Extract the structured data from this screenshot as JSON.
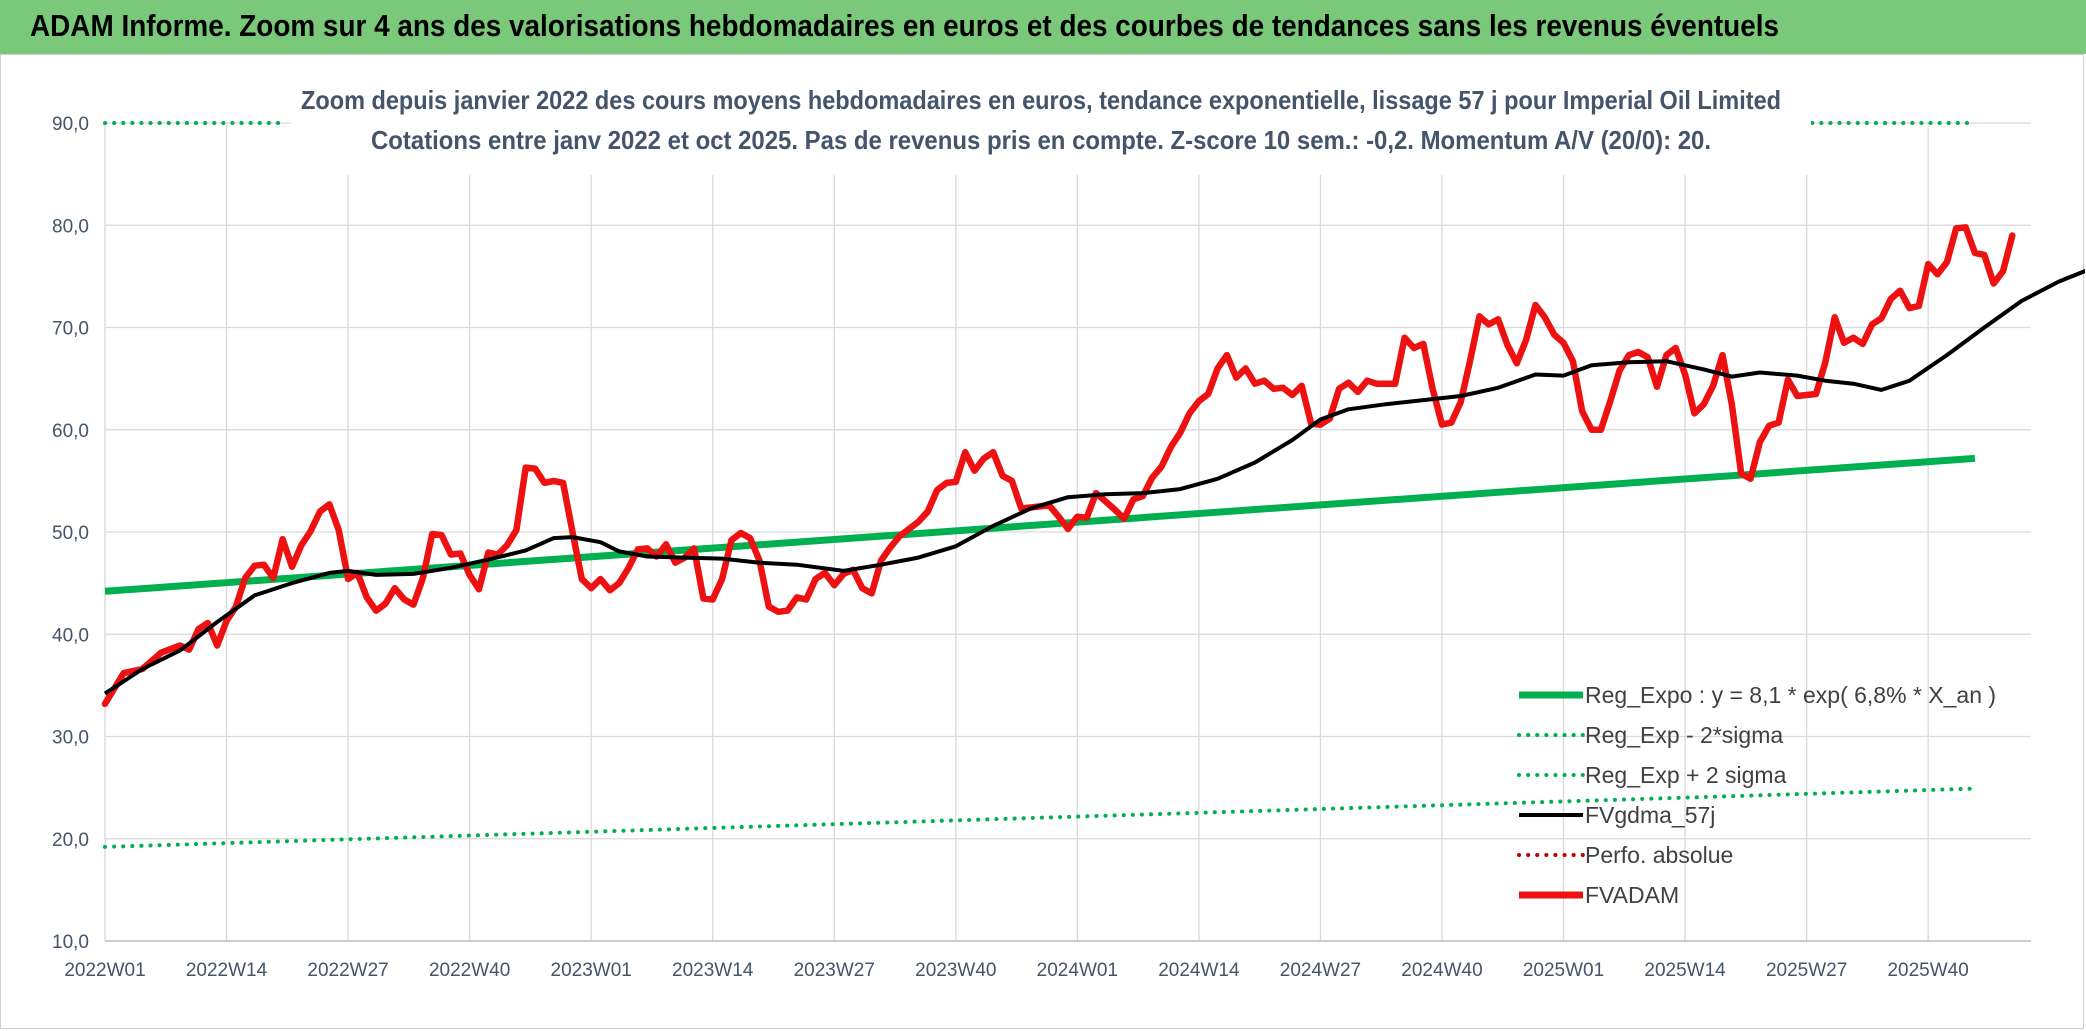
{
  "header": {
    "title": "ADAM Informe. Zoom sur 4 ans des valorisations hebdomadaires en euros et des courbes de tendances sans les revenus éventuels"
  },
  "chart_data": {
    "type": "line",
    "title": "Zoom depuis janvier 2022 des cours moyens hebdomadaires en euros, tendance exponentielle, lissage 57 j pour Imperial Oil Limited",
    "subtitle": "Cotations entre janv 2022 et oct 2025. Pas de revenus pris en compte. Z-score 10 sem.: -0,2. Momentum A/V (20/0): 20.",
    "xlabel": "",
    "ylabel": "",
    "ylim": [
      10,
      90
    ],
    "yticks": [
      "10,0",
      "20,0",
      "30,0",
      "40,0",
      "50,0",
      "60,0",
      "70,0",
      "80,0",
      "90,0"
    ],
    "xticks": [
      "2022W01",
      "2022W14",
      "2022W27",
      "2022W40",
      "2023W01",
      "2023W14",
      "2023W27",
      "2023W40",
      "2024W01",
      "2024W14",
      "2024W27",
      "2024W40",
      "2025W01",
      "2025W14",
      "2025W27",
      "2025W40"
    ],
    "grid": true,
    "legend_position": "bottom-right",
    "series": [
      {
        "name": "Reg_Expo : y = 8,1 * exp( 6,8% *  X_an )",
        "color": "#00b050",
        "style": "solid",
        "values": [
          [
            1,
            44.2
          ],
          [
            201,
            57.2
          ]
        ]
      },
      {
        "name": "Reg_Exp - 2*sigma",
        "color": "#00b050",
        "style": "dotted",
        "values": [
          [
            1,
            19.2
          ],
          [
            201,
            24.9
          ]
        ]
      },
      {
        "name": "Reg_Exp + 2 sigma",
        "color": "#00b050",
        "style": "dotted",
        "values": [
          [
            1,
            90.0
          ],
          [
            20,
            90.0
          ],
          [
            169,
            90.0
          ],
          [
            201,
            90.0
          ]
        ]
      },
      {
        "name": "FVgdma_57j",
        "color": "#000000",
        "style": "solid",
        "values": [
          [
            1,
            34.2
          ],
          [
            5,
            36.6
          ],
          [
            9,
            38.4
          ],
          [
            13,
            41.2
          ],
          [
            17,
            43.8
          ],
          [
            21,
            45.0
          ],
          [
            25,
            46.0
          ],
          [
            27,
            46.2
          ],
          [
            30,
            45.8
          ],
          [
            34,
            45.9
          ],
          [
            38,
            46.5
          ],
          [
            42,
            47.3
          ],
          [
            46,
            48.2
          ],
          [
            49,
            49.4
          ],
          [
            51,
            49.5
          ],
          [
            54,
            49.0
          ],
          [
            56,
            48.1
          ],
          [
            59,
            47.6
          ],
          [
            63,
            47.5
          ],
          [
            67,
            47.4
          ],
          [
            71,
            47.0
          ],
          [
            75,
            46.8
          ],
          [
            80,
            46.2
          ],
          [
            84,
            46.8
          ],
          [
            88,
            47.5
          ],
          [
            92,
            48.6
          ],
          [
            96,
            50.6
          ],
          [
            100,
            52.3
          ],
          [
            104,
            53.4
          ],
          [
            108,
            53.7
          ],
          [
            112,
            53.8
          ],
          [
            116,
            54.2
          ],
          [
            120,
            55.2
          ],
          [
            124,
            56.8
          ],
          [
            128,
            59.0
          ],
          [
            131,
            61.0
          ],
          [
            134,
            62.0
          ],
          [
            138,
            62.5
          ],
          [
            142,
            62.9
          ],
          [
            146,
            63.3
          ],
          [
            150,
            64.1
          ],
          [
            154,
            65.4
          ],
          [
            157,
            65.3
          ],
          [
            160,
            66.3
          ],
          [
            164,
            66.6
          ],
          [
            168,
            66.7
          ],
          [
            172,
            65.9
          ],
          [
            175,
            65.2
          ],
          [
            178,
            65.6
          ],
          [
            182,
            65.3
          ],
          [
            185,
            64.8
          ],
          [
            188,
            64.5
          ],
          [
            191,
            63.9
          ],
          [
            194,
            64.8
          ],
          [
            198,
            67.3
          ],
          [
            202,
            70.0
          ],
          [
            206,
            72.6
          ],
          [
            210,
            74.5
          ],
          [
            213,
            75.6
          ],
          [
            216,
            76.0
          ],
          [
            218,
            76.6
          ]
        ]
      },
      {
        "name": "Perfo. absolue",
        "color": "#c00000",
        "style": "dotted",
        "values": []
      },
      {
        "name": "FVADAM",
        "color": "#ee1111",
        "style": "solid",
        "values": [
          [
            1,
            33.2
          ],
          [
            3,
            36.2
          ],
          [
            5,
            36.6
          ],
          [
            7,
            38.2
          ],
          [
            9,
            38.9
          ],
          [
            10,
            38.5
          ],
          [
            11,
            40.5
          ],
          [
            12,
            41.1
          ],
          [
            13,
            38.9
          ],
          [
            14,
            41.3
          ],
          [
            15,
            42.7
          ],
          [
            16,
            45.5
          ],
          [
            17,
            46.7
          ],
          [
            18,
            46.8
          ],
          [
            19,
            45.5
          ],
          [
            20,
            49.3
          ],
          [
            21,
            46.6
          ],
          [
            22,
            48.7
          ],
          [
            23,
            50.1
          ],
          [
            24,
            52.0
          ],
          [
            25,
            52.7
          ],
          [
            26,
            50.2
          ],
          [
            27,
            45.4
          ],
          [
            28,
            46.0
          ],
          [
            29,
            43.6
          ],
          [
            30,
            42.3
          ],
          [
            31,
            43.0
          ],
          [
            32,
            44.5
          ],
          [
            33,
            43.4
          ],
          [
            34,
            42.9
          ],
          [
            35,
            45.5
          ],
          [
            36,
            49.8
          ],
          [
            37,
            49.7
          ],
          [
            38,
            47.8
          ],
          [
            39,
            47.9
          ],
          [
            40,
            45.8
          ],
          [
            41,
            44.4
          ],
          [
            42,
            48.0
          ],
          [
            43,
            47.8
          ],
          [
            44,
            48.7
          ],
          [
            45,
            50.2
          ],
          [
            46,
            56.3
          ],
          [
            47,
            56.2
          ],
          [
            48,
            54.8
          ],
          [
            49,
            55.0
          ],
          [
            50,
            54.8
          ],
          [
            51,
            50.0
          ],
          [
            52,
            45.4
          ],
          [
            53,
            44.5
          ],
          [
            54,
            45.4
          ],
          [
            55,
            44.3
          ],
          [
            56,
            45.0
          ],
          [
            57,
            46.5
          ],
          [
            58,
            48.3
          ],
          [
            59,
            48.4
          ],
          [
            60,
            47.6
          ],
          [
            61,
            48.8
          ],
          [
            62,
            47.0
          ],
          [
            63,
            47.5
          ],
          [
            64,
            48.4
          ],
          [
            65,
            43.5
          ],
          [
            66,
            43.4
          ],
          [
            67,
            45.4
          ],
          [
            68,
            49.2
          ],
          [
            69,
            49.9
          ],
          [
            70,
            49.4
          ],
          [
            71,
            47.2
          ],
          [
            72,
            42.7
          ],
          [
            73,
            42.2
          ],
          [
            74,
            42.3
          ],
          [
            75,
            43.6
          ],
          [
            76,
            43.4
          ],
          [
            77,
            45.4
          ],
          [
            78,
            46.0
          ],
          [
            79,
            44.8
          ],
          [
            80,
            45.9
          ],
          [
            81,
            46.3
          ],
          [
            82,
            44.5
          ],
          [
            83,
            44.0
          ],
          [
            84,
            47.2
          ],
          [
            85,
            48.5
          ],
          [
            86,
            49.6
          ],
          [
            87,
            50.3
          ],
          [
            88,
            51.0
          ],
          [
            89,
            52.0
          ],
          [
            90,
            54.1
          ],
          [
            91,
            54.8
          ],
          [
            92,
            54.9
          ],
          [
            93,
            57.8
          ],
          [
            94,
            56.0
          ],
          [
            95,
            57.2
          ],
          [
            96,
            57.8
          ],
          [
            97,
            55.5
          ],
          [
            98,
            55.0
          ],
          [
            99,
            52.3
          ],
          [
            100,
            52.4
          ],
          [
            101,
            52.5
          ],
          [
            102,
            52.6
          ],
          [
            103,
            51.5
          ],
          [
            104,
            50.3
          ],
          [
            105,
            51.5
          ],
          [
            106,
            51.4
          ],
          [
            107,
            53.8
          ],
          [
            108,
            53.0
          ],
          [
            109,
            52.2
          ],
          [
            110,
            51.3
          ],
          [
            111,
            53.2
          ],
          [
            112,
            53.5
          ],
          [
            113,
            55.3
          ],
          [
            114,
            56.4
          ],
          [
            115,
            58.3
          ],
          [
            116,
            59.7
          ],
          [
            117,
            61.6
          ],
          [
            118,
            62.8
          ],
          [
            119,
            63.5
          ],
          [
            120,
            66.0
          ],
          [
            121,
            67.3
          ],
          [
            122,
            65.1
          ],
          [
            123,
            66.0
          ],
          [
            124,
            64.5
          ],
          [
            125,
            64.8
          ],
          [
            126,
            64.0
          ],
          [
            127,
            64.1
          ],
          [
            128,
            63.4
          ],
          [
            129,
            64.3
          ],
          [
            130,
            60.6
          ],
          [
            131,
            60.5
          ],
          [
            132,
            61.1
          ],
          [
            133,
            64.0
          ],
          [
            134,
            64.6
          ],
          [
            135,
            63.7
          ],
          [
            136,
            64.8
          ],
          [
            137,
            64.5
          ],
          [
            138,
            64.5
          ],
          [
            139,
            64.5
          ],
          [
            140,
            69.0
          ],
          [
            141,
            68.0
          ],
          [
            142,
            68.4
          ],
          [
            143,
            64.0
          ],
          [
            144,
            60.5
          ],
          [
            145,
            60.7
          ],
          [
            146,
            62.7
          ],
          [
            147,
            66.7
          ],
          [
            148,
            71.1
          ],
          [
            149,
            70.3
          ],
          [
            150,
            70.8
          ],
          [
            151,
            68.3
          ],
          [
            152,
            66.5
          ],
          [
            153,
            68.8
          ],
          [
            154,
            72.2
          ],
          [
            155,
            71.0
          ],
          [
            156,
            69.3
          ],
          [
            157,
            68.5
          ],
          [
            158,
            66.7
          ],
          [
            159,
            61.8
          ],
          [
            160,
            60.0
          ],
          [
            161,
            60.0
          ],
          [
            162,
            62.8
          ],
          [
            163,
            65.8
          ],
          [
            164,
            67.3
          ],
          [
            165,
            67.6
          ],
          [
            166,
            67.1
          ],
          [
            167,
            64.2
          ],
          [
            168,
            67.3
          ],
          [
            169,
            68.0
          ],
          [
            170,
            65.4
          ],
          [
            171,
            61.6
          ],
          [
            172,
            62.5
          ],
          [
            173,
            64.3
          ],
          [
            174,
            67.3
          ],
          [
            175,
            62.5
          ],
          [
            176,
            55.7
          ],
          [
            177,
            55.2
          ],
          [
            178,
            58.8
          ],
          [
            179,
            60.4
          ],
          [
            180,
            60.7
          ],
          [
            181,
            64.9
          ],
          [
            182,
            63.3
          ],
          [
            183,
            63.4
          ],
          [
            184,
            63.5
          ],
          [
            185,
            66.6
          ],
          [
            186,
            71.0
          ],
          [
            187,
            68.5
          ],
          [
            188,
            69.0
          ],
          [
            189,
            68.4
          ],
          [
            190,
            70.3
          ],
          [
            191,
            70.9
          ],
          [
            192,
            72.8
          ],
          [
            193,
            73.6
          ],
          [
            194,
            71.9
          ],
          [
            195,
            72.1
          ],
          [
            196,
            76.2
          ],
          [
            197,
            75.2
          ],
          [
            198,
            76.4
          ],
          [
            199,
            79.7
          ],
          [
            200,
            79.8
          ],
          [
            201,
            77.3
          ],
          [
            202,
            77.1
          ],
          [
            203,
            74.3
          ],
          [
            204,
            75.5
          ],
          [
            205,
            79.0
          ]
        ]
      }
    ]
  }
}
